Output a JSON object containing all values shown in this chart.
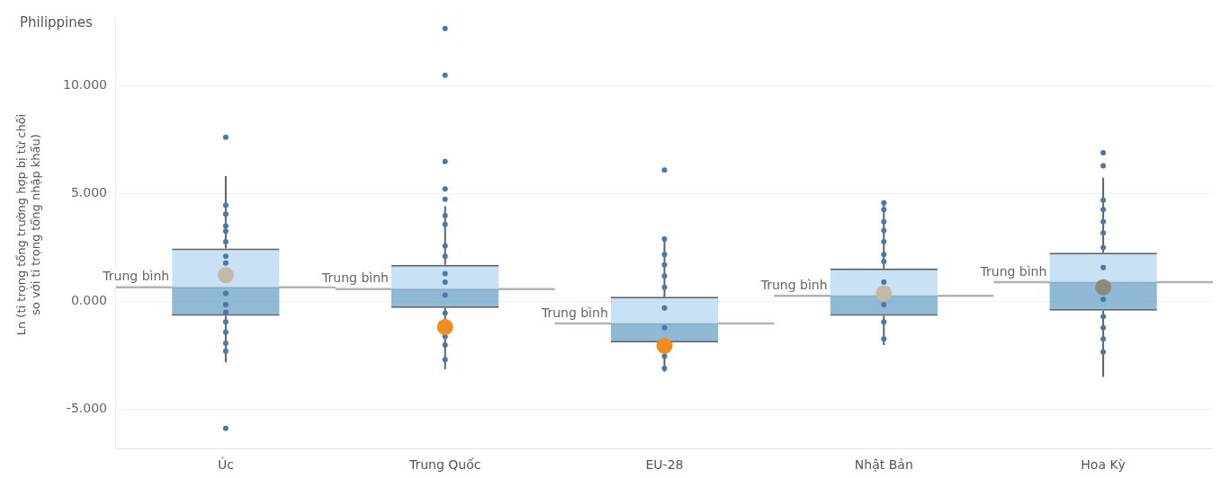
{
  "chart_data": {
    "type": "box",
    "title": "Philippines",
    "ylabel": "Ln (tỉ trọng tổng trường hợp bị từ chối\nso với tỉ trọng tổng nhập khẩu)",
    "categories": [
      "Úc",
      "Trung Quốc",
      "EU-28",
      "Nhật Bản",
      "Hoa Kỳ"
    ],
    "boxes": [
      {
        "low": -2.84,
        "q1": -0.68,
        "median": 0.64,
        "q3": 2.44,
        "high": 5.8,
        "mean": 0.64,
        "outliers": [
          7.6,
          -5.9
        ]
      },
      {
        "low": -3.16,
        "q1": -0.32,
        "median": 0.56,
        "q3": 1.68,
        "high": 4.4,
        "mean": 0.56,
        "outliers": [
          12.64,
          10.48,
          6.48,
          5.2,
          4.72
        ]
      },
      {
        "low": -3.28,
        "q1": -1.92,
        "median": -1.04,
        "q3": 0.2,
        "high": 2.96,
        "mean": -1.04,
        "outliers": [
          6.08
        ]
      },
      {
        "low": -2.04,
        "q1": -0.68,
        "median": 0.24,
        "q3": 1.52,
        "high": 4.6,
        "mean": 0.24
      },
      {
        "low": -3.52,
        "q1": -0.44,
        "median": 0.88,
        "q3": 2.24,
        "high": 5.72,
        "mean": 0.88,
        "outliers": [
          6.88,
          6.28
        ]
      }
    ],
    "series": [
      {
        "type": "scatter",
        "color": "#4a78a8",
        "x": [
          "Úc",
          "Úc",
          "Úc",
          "Úc",
          "Úc",
          "Úc",
          "Úc",
          "Úc",
          "Úc",
          "Úc",
          "Úc",
          "Úc",
          "Úc",
          "Úc",
          "Trung Quốc",
          "Trung Quốc",
          "Trung Quốc",
          "Trung Quốc",
          "Trung Quốc",
          "Trung Quốc",
          "Trung Quốc",
          "Trung Quốc",
          "Trung Quốc",
          "Trung Quốc",
          "Trung Quốc",
          "EU-28",
          "EU-28",
          "EU-28",
          "EU-28",
          "EU-28",
          "EU-28",
          "EU-28",
          "EU-28",
          "EU-28",
          "Nhật Bản",
          "Nhật Bản",
          "Nhật Bản",
          "Nhật Bản",
          "Nhật Bản",
          "Nhật Bản",
          "Nhật Bản",
          "Nhật Bản",
          "Nhật Bản",
          "Nhật Bản",
          "Nhật Bản",
          "Hoa Kỳ",
          "Hoa Kỳ",
          "Hoa Kỳ",
          "Hoa Kỳ",
          "Hoa Kỳ",
          "Hoa Kỳ",
          "Hoa Kỳ",
          "Hoa Kỳ",
          "Hoa Kỳ",
          "Hoa Kỳ",
          "Hoa Kỳ"
        ],
        "values": [
          4.44,
          4.04,
          3.48,
          3.24,
          2.76,
          2.08,
          1.76,
          0.36,
          -0.16,
          -0.52,
          -0.96,
          -1.44,
          -1.96,
          -2.32,
          3.96,
          3.56,
          2.56,
          2.08,
          1.28,
          0.88,
          0.28,
          -0.56,
          -1.64,
          -2.04,
          -2.72,
          2.88,
          2.16,
          1.68,
          1.16,
          0.64,
          -0.32,
          -1.24,
          -2.56,
          -3.12,
          4.56,
          4.24,
          3.68,
          3.28,
          2.76,
          2.16,
          1.84,
          0.88,
          -0.16,
          -0.96,
          -1.76,
          4.68,
          4.24,
          3.68,
          3.16,
          2.48,
          1.56,
          0.08,
          -0.72,
          -1.24,
          -1.76,
          -2.36
        ]
      },
      {
        "type": "scatter",
        "x": [
          "Úc",
          "Trung Quốc",
          "EU-28",
          "Nhật Bản",
          "Hoa Kỳ"
        ],
        "values": [
          1.2,
          -1.2,
          -2.08,
          0.36,
          0.64
        ],
        "colors": [
          "#c4b9a3",
          "#f28c1e",
          "#f28c1e",
          "#c4b9a3",
          "#8a8a7a"
        ]
      }
    ],
    "annotations": [
      {
        "text": "Trung bình",
        "y": 0.64
      },
      {
        "text": "Trung bình",
        "y": 0.56
      },
      {
        "text": "Trung bình",
        "y": -1.04
      },
      {
        "text": "Trung bình",
        "y": 0.24
      },
      {
        "text": "Trung bình",
        "y": 0.88
      }
    ],
    "ylim": [
      -6.84,
      13.2
    ],
    "yticks": [
      {
        "value": -5,
        "label": "-5.000"
      },
      {
        "value": 0,
        "label": "0.000"
      },
      {
        "value": 5,
        "label": "5.000"
      },
      {
        "value": 10,
        "label": "10.000"
      }
    ],
    "grid": "y",
    "legend": false
  }
}
